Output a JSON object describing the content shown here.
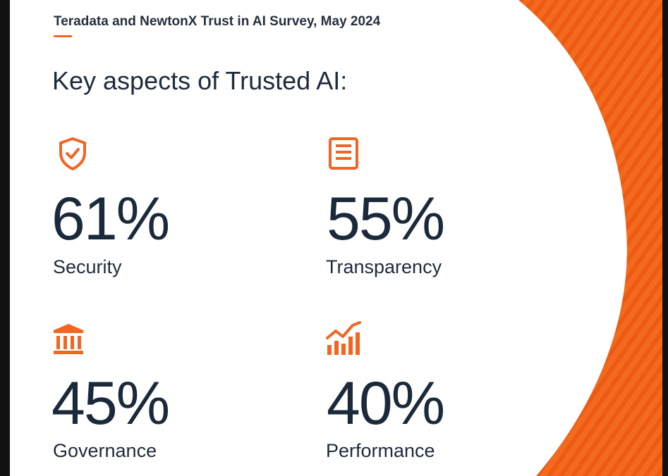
{
  "header": {
    "source": "Teradata and NewtonX Trust in AI Survey, May 2024",
    "title": "Key aspects of Trusted AI:"
  },
  "metrics": [
    {
      "value": "61%",
      "label": "Security",
      "icon": "shield-check-icon"
    },
    {
      "value": "55%",
      "label": "Transparency",
      "icon": "document-icon"
    },
    {
      "value": "45%",
      "label": "Governance",
      "icon": "bank-building-icon"
    },
    {
      "value": "40%",
      "label": "Performance",
      "icon": "bar-chart-trend-icon"
    }
  ],
  "colors": {
    "accent": "#f26522",
    "accent_dark": "#e8500f",
    "text": "#1b2a3a",
    "background": "#ffffff"
  }
}
